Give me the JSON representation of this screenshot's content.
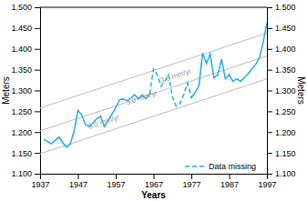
{
  "chart_data": {
    "type": "line",
    "xlabel": "Years",
    "ylabel": "Meters",
    "y2label": "Meters",
    "xlim": [
      1937,
      1997
    ],
    "ylim": [
      1.1,
      1.5
    ],
    "y2lim": [
      1.1,
      1.5
    ],
    "xticks": [
      1937,
      1947,
      1957,
      1967,
      1977,
      1987,
      1997
    ],
    "yticks": [
      {
        "value": 1.1,
        "label": "1.100"
      },
      {
        "value": 1.15,
        "label": "1.150"
      },
      {
        "value": 1.2,
        "label": "1.200"
      },
      {
        "value": 1.25,
        "label": "1.250"
      },
      {
        "value": 1.3,
        "label": "1.300"
      },
      {
        "value": 1.35,
        "label": "1.350"
      },
      {
        "value": 1.4,
        "label": "1.400"
      },
      {
        "value": 1.45,
        "label": "1.450"
      },
      {
        "value": 1.5,
        "label": "1.500"
      }
    ],
    "y2ticks": [
      {
        "value": 1.1,
        "label": "1.100"
      },
      {
        "value": 1.15,
        "label": "1.150"
      },
      {
        "value": 1.2,
        "label": "1.200"
      },
      {
        "value": 1.25,
        "label": "1.250"
      },
      {
        "value": 1.3,
        "label": "1.300"
      },
      {
        "value": 1.35,
        "label": "1.350"
      },
      {
        "value": 1.4,
        "label": "1.400"
      },
      {
        "value": 1.45,
        "label": "1.450"
      },
      {
        "value": 1.5,
        "label": "1.500"
      }
    ],
    "grid": false,
    "legend": "lower right",
    "x": [
      1938,
      1939,
      1940,
      1941,
      1942,
      1943,
      1944,
      1945,
      1946,
      1947,
      1948,
      1949,
      1950,
      1951,
      1952,
      1953,
      1954,
      1955,
      1956,
      1957,
      1958,
      1959,
      1960,
      1961,
      1962,
      1963,
      1964,
      1965,
      1966,
      1967,
      1968,
      1969,
      1970,
      1971,
      1972,
      1973,
      1974,
      1975,
      1976,
      1977,
      1978,
      1979,
      1980,
      1981,
      1982,
      1983,
      1984,
      1985,
      1986,
      1987,
      1988,
      1989,
      1990,
      1991,
      1992,
      1993,
      1994,
      1995,
      1996,
      1997
    ],
    "series": [
      {
        "color": "#22aaee",
        "line_style": "solid",
        "values": [
          1.183,
          1.177,
          1.172,
          1.18,
          1.188,
          1.175,
          1.163,
          1.172,
          1.202,
          1.252,
          1.242,
          1.218,
          1.213,
          1.222,
          1.232,
          1.238,
          1.213,
          1.228,
          1.243,
          1.258,
          1.278,
          1.28,
          1.275,
          1.282,
          1.29,
          1.28,
          1.29,
          1.28,
          1.292,
          null,
          null,
          null,
          null,
          null,
          null,
          null,
          null,
          null,
          null,
          null,
          null,
          null,
          null,
          null,
          null,
          null,
          null,
          null,
          null,
          null,
          null,
          null,
          null,
          null,
          null,
          null,
          null,
          null,
          null,
          null
        ]
      },
      {
        "name": "Data missing",
        "color": "#22aaee",
        "line_style": "dashed",
        "values": [
          null,
          null,
          null,
          null,
          null,
          null,
          null,
          null,
          null,
          null,
          null,
          null,
          null,
          null,
          null,
          null,
          null,
          null,
          null,
          null,
          null,
          null,
          null,
          null,
          null,
          null,
          null,
          null,
          1.292,
          1.352,
          1.338,
          1.31,
          1.322,
          1.338,
          1.285,
          1.262,
          1.268,
          1.29,
          1.318,
          1.282,
          null,
          null,
          null,
          null,
          null,
          null,
          null,
          null,
          null,
          null,
          null,
          null,
          null,
          null,
          null,
          null,
          null,
          null,
          null,
          null
        ]
      },
      {
        "color": "#22aaee",
        "line_style": "solid",
        "values": [
          null,
          null,
          null,
          null,
          null,
          null,
          null,
          null,
          null,
          null,
          null,
          null,
          null,
          null,
          null,
          null,
          null,
          null,
          null,
          null,
          null,
          null,
          null,
          null,
          null,
          null,
          null,
          null,
          null,
          null,
          null,
          null,
          null,
          null,
          null,
          null,
          null,
          null,
          null,
          1.282,
          1.295,
          1.31,
          1.39,
          1.365,
          1.388,
          1.33,
          1.338,
          1.375,
          1.328,
          1.338,
          1.322,
          1.328,
          1.322,
          1.33,
          1.34,
          1.352,
          1.362,
          1.378,
          1.415,
          1.462
        ]
      }
    ],
    "trend_lines": [
      {
        "color": "#bbbbbb",
        "x": [
          1937,
          1997
        ],
        "values": [
          1.148,
          1.328
        ],
        "label": "3.0 mm/yr",
        "label_x": 1950,
        "label_y": 1.207
      },
      {
        "color": "#bbbbbb",
        "x": [
          1937,
          1997
        ],
        "values": [
          1.203,
          1.383
        ],
        "label": "3.0 mm/yr",
        "label_x": 1960,
        "label_y": 1.265
      },
      {
        "color": "#bbbbbb",
        "x": [
          1937,
          1997
        ],
        "values": [
          1.258,
          1.438
        ],
        "label": "3.0 mm/yr",
        "label_x": 1969,
        "label_y": 1.318
      }
    ]
  }
}
